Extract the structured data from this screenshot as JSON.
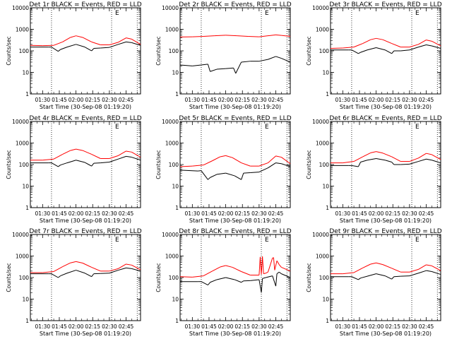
{
  "chart_data": {
    "type": "line",
    "y_scale": "log",
    "ylim": [
      1,
      10000
    ],
    "x_ticks": [
      "01:30",
      "01:45",
      "02:00",
      "02:15",
      "02:30",
      "02:45"
    ],
    "x_tick_minutes": [
      90,
      105,
      120,
      135,
      150,
      165
    ],
    "x_range_minutes": [
      79,
      178
    ],
    "xlabel": "Start Time (30-Sep-08 01:19:20)",
    "ylabel": "Counts/sec",
    "colors": {
      "events": "#000000",
      "lld": "#ff0000",
      "marker": "#000000"
    },
    "marker_lines_minutes": [
      98,
      152,
      175
    ],
    "letter_marker": "E",
    "panels": [
      {
        "title": "Det 1r BLACK = Events, RED = LLD",
        "series": [
          {
            "key": "events",
            "color": "#000000",
            "x": [
              79,
              95,
              98,
              104,
              106,
              112,
              120,
              128,
              134,
              136,
              142,
              150,
              158,
              165,
              170,
              178
            ],
            "values": [
              150,
              150,
              150,
              95,
              115,
              150,
              200,
              150,
              100,
              130,
              135,
              145,
              200,
              260,
              240,
              180
            ]
          },
          {
            "key": "lld",
            "color": "#ff0000",
            "x": [
              79,
              90,
              100,
              108,
              115,
              120,
              126,
              134,
              142,
              150,
              158,
              165,
              170,
              178
            ],
            "values": [
              180,
              175,
              180,
              260,
              420,
              500,
              420,
              260,
              190,
              190,
              250,
              400,
              350,
              200
            ]
          }
        ]
      },
      {
        "title": "Det 2r BLACK = Events, RED = LLD",
        "series": [
          {
            "key": "events",
            "color": "#000000",
            "x": [
              79,
              90,
              98,
              104,
              106,
              112,
              120,
              127,
              129,
              134,
              142,
              150,
              158,
              165,
              170,
              178
            ],
            "values": [
              22,
              20,
              22,
              24,
              11,
              14,
              15,
              16,
              9,
              30,
              33,
              33,
              40,
              55,
              45,
              30
            ]
          },
          {
            "key": "lld",
            "color": "#ff0000",
            "x": [
              79,
              90,
              100,
              110,
              120,
              130,
              140,
              150,
              158,
              165,
              170,
              178
            ],
            "values": [
              440,
              450,
              470,
              500,
              530,
              500,
              470,
              450,
              500,
              550,
              520,
              470
            ]
          }
        ]
      },
      {
        "title": "Det 3r BLACK = Events, RED = LLD",
        "series": [
          {
            "key": "events",
            "color": "#000000",
            "x": [
              79,
              95,
              98,
              104,
              106,
              112,
              120,
              128,
              134,
              136,
              142,
              150,
              158,
              165,
              170,
              178
            ],
            "values": [
              110,
              110,
              110,
              75,
              85,
              110,
              140,
              110,
              75,
              100,
              100,
              110,
              150,
              190,
              170,
              130
            ]
          },
          {
            "key": "lld",
            "color": "#ff0000",
            "x": [
              79,
              90,
              100,
              108,
              115,
              120,
              126,
              134,
              142,
              150,
              158,
              165,
              170,
              178
            ],
            "values": [
              130,
              135,
              150,
              220,
              330,
              380,
              330,
              220,
              150,
              150,
              200,
              320,
              280,
              170
            ]
          }
        ]
      },
      {
        "title": "Det 4r BLACK = Events, RED = LLD",
        "series": [
          {
            "key": "events",
            "color": "#000000",
            "x": [
              79,
              95,
              98,
              104,
              106,
              112,
              120,
              128,
              134,
              136,
              142,
              150,
              158,
              165,
              170,
              178
            ],
            "values": [
              120,
              120,
              120,
              80,
              95,
              120,
              160,
              125,
              85,
              115,
              120,
              130,
              180,
              240,
              220,
              160
            ]
          },
          {
            "key": "lld",
            "color": "#ff0000",
            "x": [
              79,
              90,
              100,
              108,
              115,
              120,
              126,
              134,
              142,
              150,
              158,
              165,
              170,
              178
            ],
            "values": [
              160,
              160,
              180,
              300,
              450,
              520,
              450,
              300,
              190,
              190,
              260,
              420,
              380,
              220
            ]
          }
        ]
      },
      {
        "title": "Det 5r BLACK = Events, RED = LLD",
        "series": [
          {
            "key": "events",
            "color": "#000000",
            "x": [
              79,
              95,
              98,
              104,
              106,
              112,
              120,
              128,
              134,
              136,
              142,
              150,
              158,
              165,
              170,
              178
            ],
            "values": [
              55,
              50,
              52,
              20,
              25,
              35,
              40,
              30,
              20,
              40,
              42,
              45,
              70,
              120,
              110,
              80
            ]
          },
          {
            "key": "lld",
            "color": "#ff0000",
            "x": [
              79,
              90,
              100,
              108,
              115,
              120,
              126,
              134,
              142,
              150,
              158,
              165,
              170,
              178
            ],
            "values": [
              80,
              85,
              95,
              150,
              230,
              260,
              210,
              120,
              85,
              85,
              120,
              250,
              220,
              110
            ]
          }
        ]
      },
      {
        "title": "Det 6r BLACK = Events, RED = LLD",
        "series": [
          {
            "key": "events",
            "color": "#000000",
            "x": [
              79,
              95,
              98,
              104,
              106,
              112,
              120,
              128,
              134,
              136,
              142,
              150,
              158,
              165,
              170,
              178
            ],
            "values": [
              90,
              90,
              90,
              80,
              130,
              160,
              190,
              160,
              130,
              100,
              100,
              105,
              140,
              180,
              160,
              120
            ]
          },
          {
            "key": "lld",
            "color": "#ff0000",
            "x": [
              79,
              90,
              100,
              108,
              115,
              120,
              126,
              134,
              142,
              150,
              158,
              165,
              170,
              178
            ],
            "values": [
              120,
              120,
              140,
              230,
              350,
              400,
              340,
              230,
              140,
              140,
              200,
              330,
              290,
              170
            ]
          }
        ]
      },
      {
        "title": "Det 7r BLACK = Events, RED = LLD",
        "series": [
          {
            "key": "events",
            "color": "#000000",
            "x": [
              79,
              95,
              98,
              104,
              106,
              112,
              120,
              128,
              134,
              136,
              142,
              150,
              158,
              165,
              170,
              178
            ],
            "values": [
              150,
              150,
              150,
              100,
              120,
              160,
              220,
              160,
              110,
              150,
              155,
              160,
              220,
              280,
              260,
              200
            ]
          },
          {
            "key": "lld",
            "color": "#ff0000",
            "x": [
              79,
              90,
              100,
              108,
              115,
              120,
              126,
              134,
              142,
              150,
              158,
              165,
              170,
              178
            ],
            "values": [
              170,
              170,
              190,
              320,
              480,
              550,
              470,
              300,
              200,
              200,
              260,
              420,
              380,
              230
            ]
          }
        ]
      },
      {
        "title": "Det 8r BLACK = Events, RED = LLD",
        "series": [
          {
            "key": "events",
            "color": "#000000",
            "x": [
              79,
              95,
              98,
              104,
              106,
              112,
              120,
              128,
              134,
              136,
              142,
              150,
              152,
              153,
              156,
              162,
              165,
              166,
              168,
              170,
              178
            ],
            "values": [
              65,
              65,
              65,
              45,
              60,
              80,
              100,
              80,
              60,
              70,
              72,
              80,
              20,
              90,
              100,
              120,
              40,
              150,
              180,
              150,
              100
            ]
          },
          {
            "key": "lld",
            "color": "#ff0000",
            "x": [
              79,
              90,
              100,
              108,
              115,
              120,
              126,
              134,
              142,
              150,
              151,
              152,
              153,
              154,
              156,
              158,
              162,
              163,
              164,
              166,
              168,
              170,
              178
            ],
            "values": [
              110,
              105,
              120,
              200,
              310,
              360,
              300,
              190,
              130,
              130,
              900,
              140,
              950,
              150,
              160,
              180,
              800,
              850,
              220,
              600,
              400,
              300,
              200
            ]
          }
        ]
      },
      {
        "title": "Det 9r BLACK = Events, RED = LLD",
        "series": [
          {
            "key": "events",
            "color": "#000000",
            "x": [
              79,
              95,
              98,
              104,
              106,
              112,
              120,
              128,
              134,
              136,
              142,
              150,
              158,
              165,
              170,
              178
            ],
            "values": [
              110,
              110,
              110,
              80,
              95,
              115,
              150,
              120,
              85,
              110,
              115,
              120,
              160,
              210,
              190,
              140
            ]
          },
          {
            "key": "lld",
            "color": "#ff0000",
            "x": [
              79,
              90,
              100,
              108,
              115,
              120,
              126,
              134,
              142,
              150,
              158,
              165,
              170,
              178
            ],
            "values": [
              150,
              150,
              170,
              280,
              420,
              480,
              400,
              270,
              180,
              180,
              240,
              390,
              350,
              210
            ]
          }
        ]
      }
    ]
  }
}
